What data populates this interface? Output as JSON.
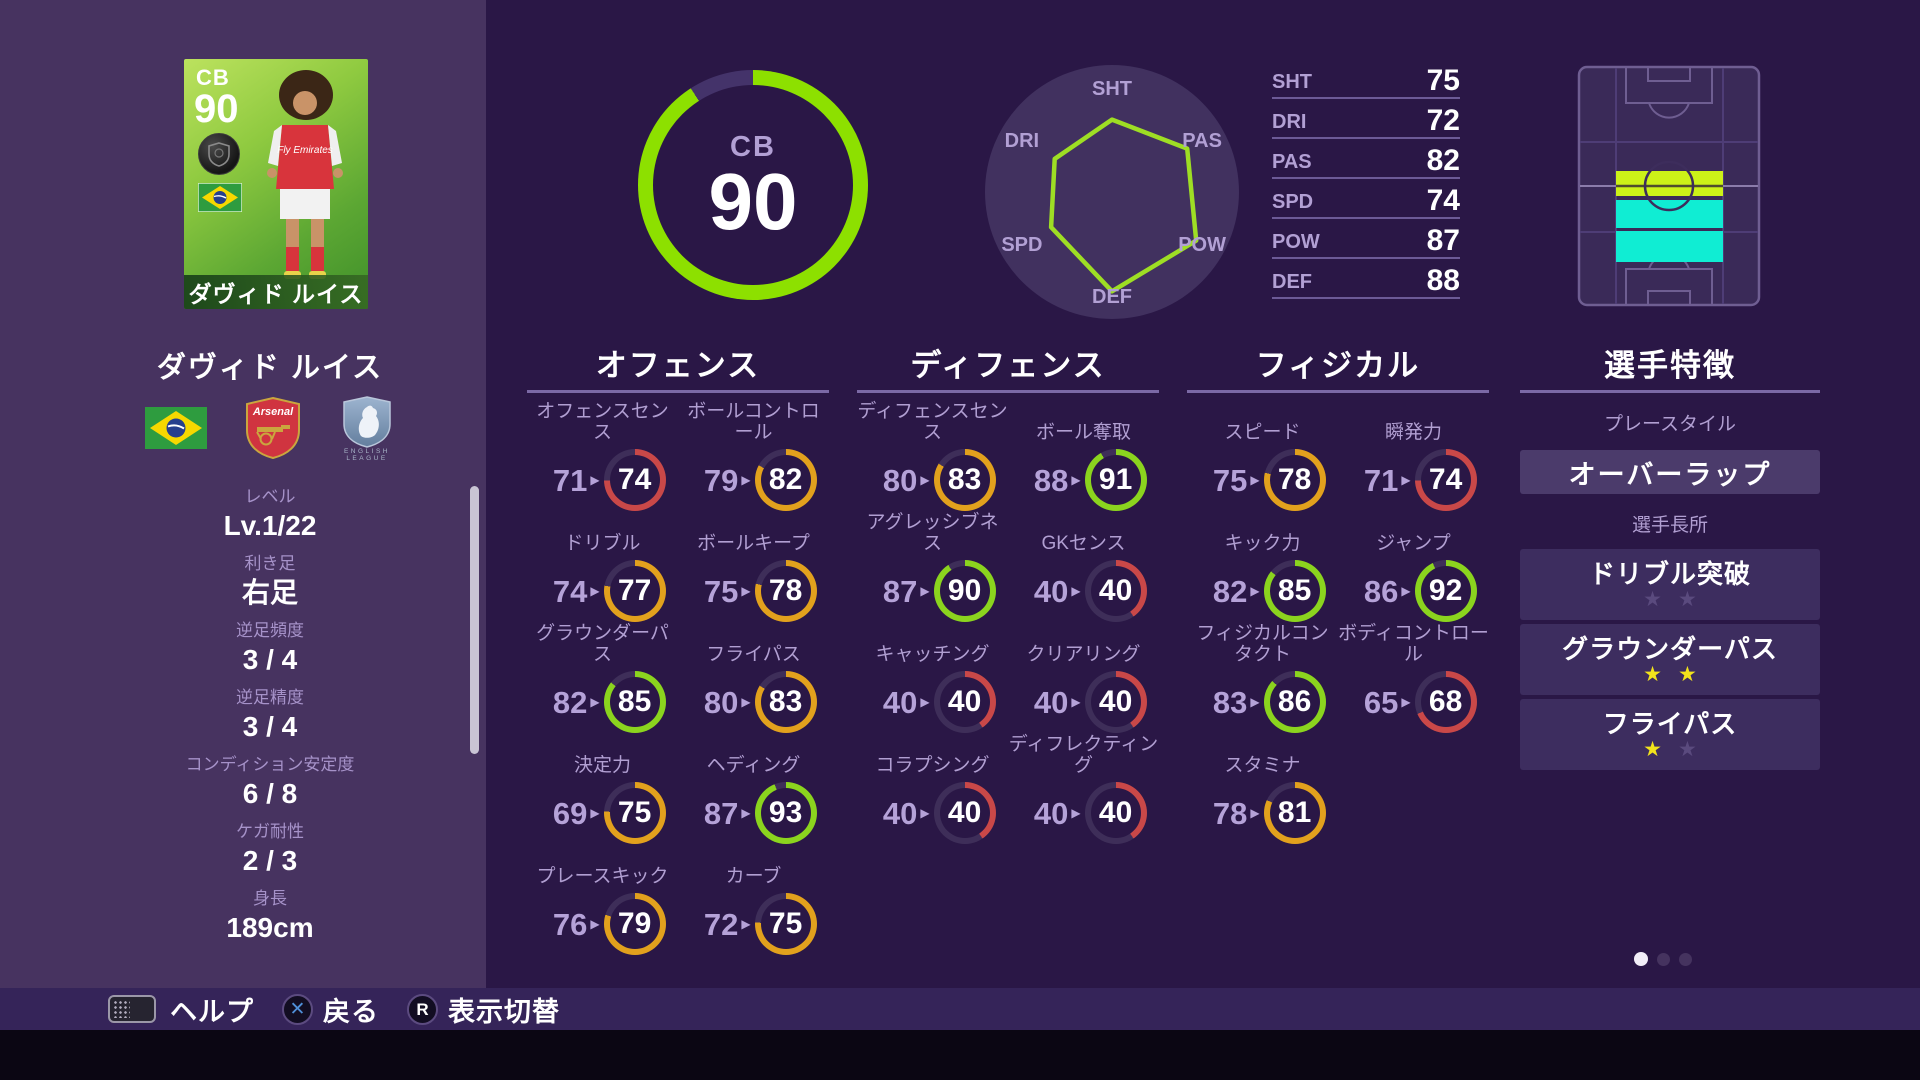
{
  "palette": {
    "green": "#8bd41e",
    "orange": "#e2a11d",
    "red": "#c94848",
    "track": "#3e2e59",
    "accent_ring": "#8de000",
    "track_big": "#44336a"
  },
  "card": {
    "position": "CB",
    "rating": "90",
    "name": "ダヴィド ルイス"
  },
  "left_panel": {
    "player_name": "ダヴィド ルイス",
    "club_name": "Arsenal",
    "league_text_1": "ENGLISH",
    "league_text_2": "LEAGUE",
    "attributes": [
      {
        "label": "レベル",
        "value": "Lv.1/22"
      },
      {
        "label": "利き足",
        "value": "右足"
      },
      {
        "label": "逆足頻度",
        "value": "3 / 4"
      },
      {
        "label": "逆足精度",
        "value": "3 / 4"
      },
      {
        "label": "コンディション安定度",
        "value": "6 / 8"
      },
      {
        "label": "ケガ耐性",
        "value": "2 / 3"
      },
      {
        "label": "身長",
        "value": "189cm"
      }
    ]
  },
  "overall": {
    "position": "CB",
    "rating": "90",
    "pct": 90.9
  },
  "chart_data": {
    "type": "radar",
    "axes": [
      "SHT",
      "PAS",
      "POW",
      "DEF",
      "SPD",
      "DRI"
    ],
    "values": [
      75,
      82,
      87,
      88,
      74,
      72
    ],
    "min": 40,
    "max": 99
  },
  "summary": [
    {
      "label": "SHT",
      "value": "75"
    },
    {
      "label": "DRI",
      "value": "72"
    },
    {
      "label": "PAS",
      "value": "82"
    },
    {
      "label": "SPD",
      "value": "74"
    },
    {
      "label": "POW",
      "value": "87"
    },
    {
      "label": "DEF",
      "value": "88"
    }
  ],
  "sections": [
    {
      "key": "offense",
      "title": "オフェンス",
      "stats": [
        {
          "label": "オフェンスセンス",
          "base": 71,
          "value": 74
        },
        {
          "label": "ボールコントロール",
          "base": 79,
          "value": 82
        },
        {
          "label": "ドリブル",
          "base": 74,
          "value": 77
        },
        {
          "label": "ボールキープ",
          "base": 75,
          "value": 78
        },
        {
          "label": "グラウンダーパス",
          "base": 82,
          "value": 85
        },
        {
          "label": "フライパス",
          "base": 80,
          "value": 83
        },
        {
          "label": "決定力",
          "base": 69,
          "value": 75
        },
        {
          "label": "ヘディング",
          "base": 87,
          "value": 93
        },
        {
          "label": "プレースキック",
          "base": 76,
          "value": 79
        },
        {
          "label": "カーブ",
          "base": 72,
          "value": 75
        }
      ]
    },
    {
      "key": "defense",
      "title": "ディフェンス",
      "stats": [
        {
          "label": "ディフェンスセンス",
          "base": 80,
          "value": 83
        },
        {
          "label": "ボール奪取",
          "base": 88,
          "value": 91
        },
        {
          "label": "アグレッシブネス",
          "base": 87,
          "value": 90
        },
        {
          "label": "GKセンス",
          "base": 40,
          "value": 40
        },
        {
          "label": "キャッチング",
          "base": 40,
          "value": 40
        },
        {
          "label": "クリアリング",
          "base": 40,
          "value": 40
        },
        {
          "label": "コラプシング",
          "base": 40,
          "value": 40
        },
        {
          "label": "ディフレクティング",
          "base": 40,
          "value": 40
        }
      ]
    },
    {
      "key": "physical",
      "title": "フィジカル",
      "stats": [
        {
          "label": "スピード",
          "base": 75,
          "value": 78
        },
        {
          "label": "瞬発力",
          "base": 71,
          "value": 74
        },
        {
          "label": "キック力",
          "base": 82,
          "value": 85
        },
        {
          "label": "ジャンプ",
          "base": 86,
          "value": 92
        },
        {
          "label": "フィジカルコンタクト",
          "base": 83,
          "value": 86
        },
        {
          "label": "ボディコントロール",
          "base": 65,
          "value": 68
        },
        {
          "label": "スタミナ",
          "base": 78,
          "value": 81
        }
      ]
    }
  ],
  "traits": {
    "title": "選手特徴",
    "playstyle_label": "プレースタイル",
    "playstyle": "オーバーラップ",
    "strengths_label": "選手長所",
    "strengths": [
      {
        "label": "ドリブル突破",
        "stars": 0,
        "max": 2
      },
      {
        "label": "グラウンダーパス",
        "stars": 2,
        "max": 2
      },
      {
        "label": "フライパス",
        "stars": 1,
        "max": 2
      }
    ]
  },
  "pagination": {
    "count": 3,
    "active": 0
  },
  "bottom_bar": {
    "help": "ヘルプ",
    "back": "戻る",
    "toggle": "表示切替",
    "back_key": "✕",
    "toggle_key": "R"
  }
}
